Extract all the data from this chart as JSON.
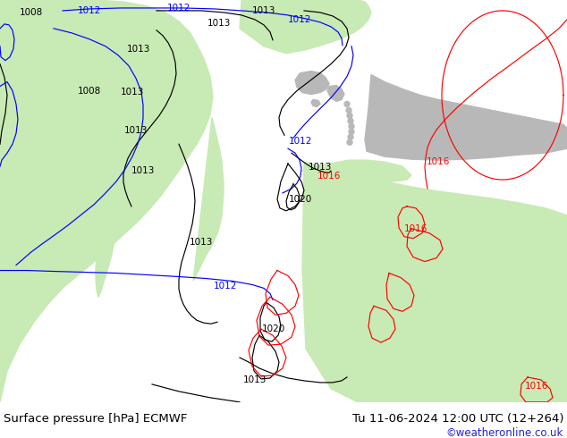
{
  "title_left": "Surface pressure [hPa] ECMWF",
  "title_right": "Tu 11-06-2024 12:00 UTC (12+264)",
  "credit": "©weatheronline.co.uk",
  "ocean_color": "#d4d4d4",
  "land_green": "#c8eab4",
  "land_gray": "#b8b8b8",
  "footer_bg": "#ffffff",
  "label_font_size": 7.5,
  "credit_color": "#2222cc",
  "title_font_size": 9.5,
  "black_line_color": "#000000",
  "blue_line_color": "#0000ff",
  "red_line_color": "#ff0000"
}
